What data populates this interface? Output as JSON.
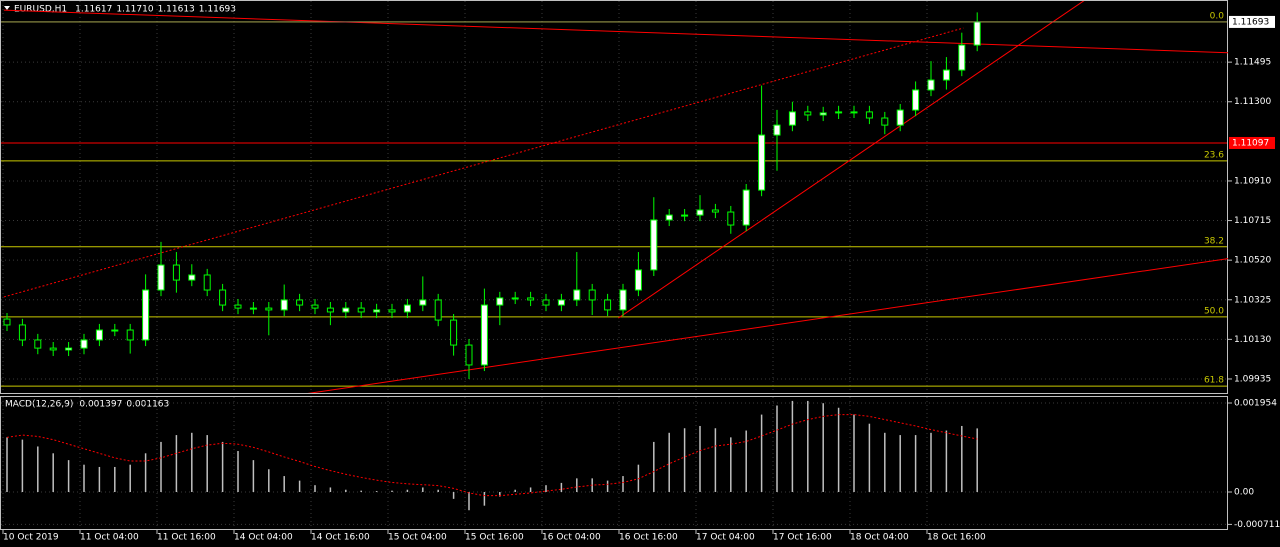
{
  "chart_data": [
    {
      "type": "candlestick",
      "symbol": "EURUSD,H1",
      "header_values": [
        "1.11617",
        "1.11710",
        "1.11613",
        "1.11693"
      ],
      "categories": [
        "10 Oct 2019",
        null,
        null,
        null,
        null,
        "11 Oct 04:00",
        null,
        null,
        null,
        null,
        "11 Oct 16:00",
        null,
        null,
        null,
        null,
        "14 Oct 04:00",
        null,
        null,
        null,
        null,
        "14 Oct 16:00",
        null,
        null,
        null,
        null,
        "15 Oct 04:00",
        null,
        null,
        null,
        null,
        "15 Oct 16:00",
        null,
        null,
        null,
        null,
        "16 Oct 04:00",
        null,
        null,
        null,
        null,
        "16 Oct 16:00",
        null,
        null,
        null,
        null,
        "17 Oct 04:00",
        null,
        null,
        null,
        null,
        "17 Oct 16:00",
        null,
        null,
        null,
        null,
        "18 Oct 04:00",
        null,
        null,
        null,
        null,
        "18 Oct 16:00",
        null,
        null,
        null
      ],
      "open": [
        1.1023,
        1.10201,
        1.10127,
        1.10087,
        1.10078,
        1.10087,
        1.10127,
        1.10176,
        1.10176,
        1.10127,
        1.10373,
        1.10496,
        1.10422,
        1.10447,
        1.10373,
        1.10299,
        1.10284,
        1.10284,
        1.10275,
        1.10324,
        1.10299,
        1.10284,
        1.10265,
        1.10284,
        1.10265,
        1.10275,
        1.10265,
        1.10299,
        1.10324,
        1.10225,
        1.10102,
        1.10004,
        1.10299,
        1.10334,
        1.10334,
        1.10324,
        1.10299,
        1.10324,
        1.10373,
        1.10324,
        1.10275,
        1.10373,
        1.10472,
        1.10718,
        1.10742,
        1.10742,
        1.10767,
        1.10757,
        1.10693,
        1.10865,
        1.11136,
        1.11185,
        1.1125,
        1.11235,
        1.11245,
        1.1125,
        1.1125,
        1.1122,
        1.11185,
        1.11259,
        1.11358,
        1.11407,
        1.11456,
        1.11579
      ],
      "high": [
        1.1026,
        1.10231,
        1.10157,
        1.10117,
        1.10117,
        1.10157,
        1.10206,
        1.10206,
        1.10206,
        1.1045,
        1.1061,
        1.1056,
        1.105,
        1.10477,
        1.10403,
        1.10329,
        1.10314,
        1.10314,
        1.104,
        1.10354,
        1.10329,
        1.10314,
        1.10314,
        1.10314,
        1.10305,
        1.10305,
        1.10329,
        1.1044,
        1.10354,
        1.10255,
        1.10132,
        1.1038,
        1.10364,
        1.10364,
        1.10364,
        1.10354,
        1.10354,
        1.1056,
        1.10403,
        1.10354,
        1.10403,
        1.1056,
        1.1083,
        1.10772,
        1.10772,
        1.1084,
        1.10797,
        1.10787,
        1.10895,
        1.1138,
        1.1126,
        1.113,
        1.1128,
        1.11275,
        1.1128,
        1.1128,
        1.1128,
        1.1125,
        1.11289,
        1.114,
        1.115,
        1.1152,
        1.1164,
        1.1174
      ],
      "low": [
        1.10171,
        1.10097,
        1.10057,
        1.10048,
        1.10048,
        1.10057,
        1.10097,
        1.10146,
        1.1006,
        1.10097,
        1.10343,
        1.1036,
        1.10392,
        1.10343,
        1.10269,
        1.10254,
        1.10254,
        1.1015,
        1.10245,
        1.10269,
        1.10254,
        1.102,
        1.10235,
        1.10235,
        1.10235,
        1.10235,
        1.10235,
        1.10269,
        1.10195,
        1.1005,
        1.09935,
        1.09974,
        1.102,
        1.10304,
        1.10294,
        1.10269,
        1.10269,
        1.10294,
        1.1025,
        1.10245,
        1.10245,
        1.10343,
        1.10442,
        1.10688,
        1.10712,
        1.10712,
        1.10727,
        1.1065,
        1.10663,
        1.10835,
        1.1096,
        1.11155,
        1.11205,
        1.11205,
        1.11215,
        1.1122,
        1.1119,
        1.1114,
        1.11155,
        1.11229,
        1.11328,
        1.1136,
        1.11426,
        1.11549
      ],
      "close": [
        1.10201,
        1.10127,
        1.10087,
        1.10078,
        1.10087,
        1.10127,
        1.10176,
        1.10176,
        1.10127,
        1.10373,
        1.10496,
        1.10422,
        1.10447,
        1.10373,
        1.10299,
        1.10284,
        1.10284,
        1.10275,
        1.10324,
        1.10299,
        1.10284,
        1.10265,
        1.10284,
        1.10265,
        1.10275,
        1.10265,
        1.10299,
        1.10324,
        1.10225,
        1.10102,
        1.10004,
        1.10299,
        1.10334,
        1.10334,
        1.10324,
        1.10299,
        1.10324,
        1.10373,
        1.10324,
        1.10275,
        1.10373,
        1.10472,
        1.10718,
        1.10742,
        1.10742,
        1.10767,
        1.10757,
        1.10693,
        1.10865,
        1.11136,
        1.11185,
        1.1125,
        1.11235,
        1.11245,
        1.1125,
        1.1125,
        1.1122,
        1.11185,
        1.11259,
        1.11358,
        1.11407,
        1.11456,
        1.11579,
        1.11693
      ],
      "color": "#00ff00",
      "ylim": [
        1.09861,
        1.11801
      ],
      "yticks": [
        {
          "value": 1.11495,
          "label": "1.11495"
        },
        {
          "value": 1.113,
          "label": "1.11300"
        },
        {
          "value": 1.1091,
          "label": "1.10910"
        },
        {
          "value": 1.10715,
          "label": "1.10715"
        },
        {
          "value": 1.1052,
          "label": "1.10520"
        },
        {
          "value": 1.10325,
          "label": "1.10325"
        },
        {
          "value": 1.1013,
          "label": "1.10130"
        },
        {
          "value": 1.09935,
          "label": "1.09935"
        }
      ],
      "grid": true,
      "current_price": {
        "value": 1.11693,
        "label": "1.11693"
      },
      "level_line": {
        "value": 1.11097,
        "label": "1.11097",
        "color": "#ff0000"
      },
      "fib_levels": [
        {
          "value": 1.11693,
          "label": "0.0"
        },
        {
          "value": 1.11009,
          "label": "23.6"
        },
        {
          "value": 1.10586,
          "label": "38.2"
        },
        {
          "value": 1.10241,
          "label": "50.0"
        },
        {
          "value": 1.099,
          "label": "61.8"
        }
      ],
      "fib_color": "#c8c800",
      "trendlines": [
        {
          "x": [
            -0.2,
            79.5
          ],
          "y": [
            1.11751,
            1.11541
          ],
          "dashed": false
        },
        {
          "x": [
            -0.2,
            62.1
          ],
          "y": [
            1.10339,
            1.11663
          ],
          "dashed": true
        },
        {
          "x": [
            39.7,
            70
          ],
          "y": [
            1.10235,
            1.11801
          ],
          "dashed": false
        },
        {
          "x": [
            19.3,
            79.5
          ],
          "y": [
            1.09861,
            1.1053
          ],
          "dashed": false
        }
      ],
      "trend_color": "#ff0000"
    },
    {
      "type": "macd",
      "title": "MACD(12,26,9)",
      "header_values": [
        "0.001397",
        "0.001163"
      ],
      "macd": [
        0.0012,
        0.00115,
        0.001,
        0.00085,
        0.0007,
        0.0006,
        0.00055,
        0.00055,
        0.0006,
        0.00085,
        0.0011,
        0.00125,
        0.0013,
        0.00125,
        0.0011,
        0.0009,
        0.0007,
        0.0005,
        0.00035,
        0.00025,
        0.00015,
        0.0001,
        5e-05,
        3e-05,
        2e-05,
        3e-05,
        5e-05,
        0.0001,
        5e-05,
        -0.00015,
        -0.0004,
        -0.0003,
        -0.0001,
        5e-05,
        0.0001,
        0.00015,
        0.0002,
        0.0003,
        0.0003,
        0.00025,
        0.00035,
        0.0006,
        0.0011,
        0.0013,
        0.0014,
        0.00145,
        0.0014,
        0.0012,
        0.00135,
        0.0017,
        0.0019,
        0.002,
        0.002,
        0.00195,
        0.00185,
        0.0017,
        0.0015,
        0.0013,
        0.00125,
        0.00125,
        0.0013,
        0.00135,
        0.00145,
        0.001397
      ],
      "signal": [
        0.0012,
        0.00125,
        0.00122,
        0.00115,
        0.00105,
        0.00095,
        0.00085,
        0.00075,
        0.00068,
        0.00068,
        0.00075,
        0.00085,
        0.00095,
        0.00103,
        0.00107,
        0.00105,
        0.00098,
        0.00088,
        0.00077,
        0.00067,
        0.00056,
        0.00047,
        0.00039,
        0.00032,
        0.00026,
        0.00021,
        0.00018,
        0.00016,
        0.00014,
        8e-05,
        -2e-05,
        -8e-05,
        -8e-05,
        -5e-05,
        -2e-05,
        2e-05,
        6e-05,
        0.00011,
        0.00015,
        0.00017,
        0.00021,
        0.00029,
        0.00045,
        0.00062,
        0.00077,
        0.00091,
        0.00101,
        0.00105,
        0.00111,
        0.00123,
        0.00136,
        0.00149,
        0.00159,
        0.00166,
        0.0017,
        0.0017,
        0.00166,
        0.00159,
        0.00152,
        0.00145,
        0.00137,
        0.0013,
        0.00123,
        0.001163
      ],
      "macd_color": "#c0c0c0",
      "signal_color": "#ff0000",
      "ylim": [
        -0.000834,
        0.002108
      ],
      "yticks": [
        {
          "value": 0.001954,
          "label": "0.001954"
        },
        {
          "value": 0,
          "label": "0.00"
        },
        {
          "value": -0.000711,
          "label": "-0.000711"
        }
      ]
    }
  ]
}
